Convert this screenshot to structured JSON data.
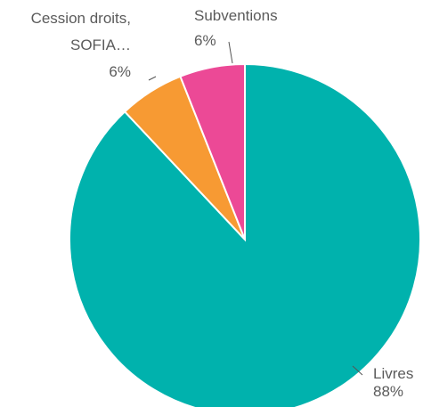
{
  "chart_data": {
    "type": "pie",
    "categories": [
      "Livres",
      "Cession droits, SOFIA…",
      "Subventions"
    ],
    "values": [
      88,
      6,
      6
    ],
    "value_labels": [
      "88%",
      "6%",
      "6%"
    ],
    "label_lines": [
      [
        "Livres"
      ],
      [
        "Cession droits,",
        "SOFIA…"
      ],
      [
        "Subventions"
      ]
    ],
    "colors": [
      "#00b2ad",
      "#f79a33",
      "#ec4996"
    ],
    "start_angle_deg": 0,
    "direction": "clockwise"
  }
}
